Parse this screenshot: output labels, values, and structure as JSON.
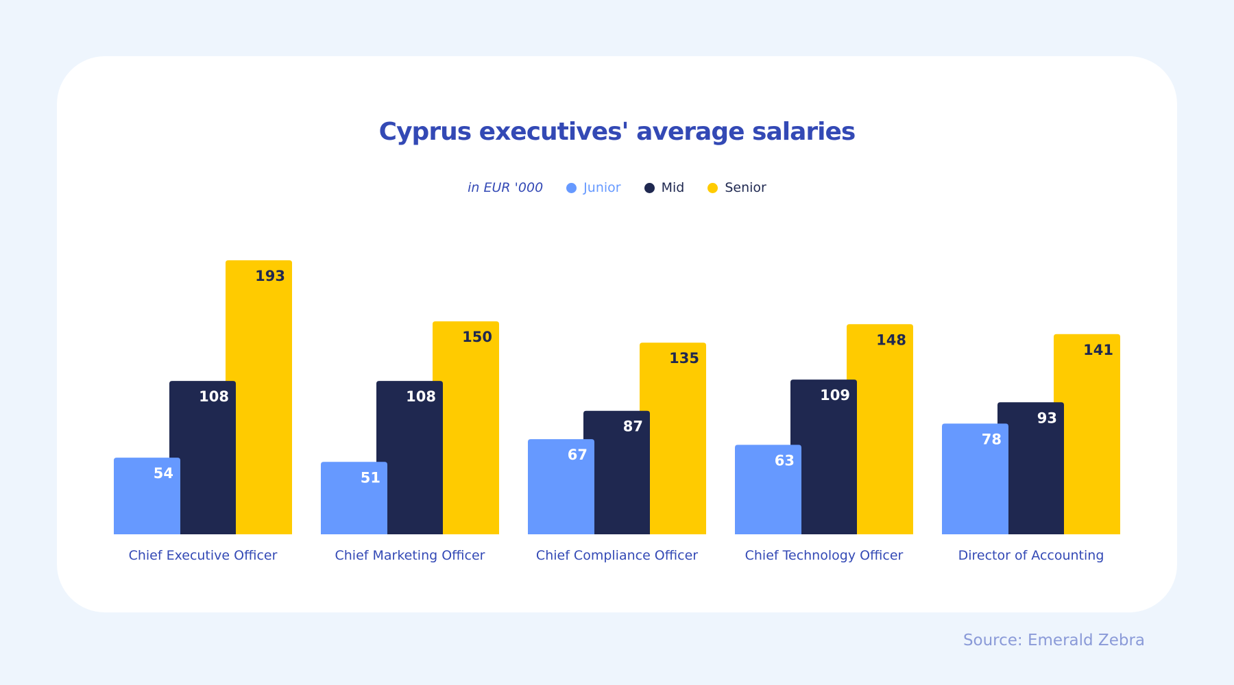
{
  "chart_data": {
    "type": "bar",
    "title": "Cyprus executives' average salaries",
    "unit_label": "in EUR '000",
    "categories": [
      "Chief Executive Officer",
      "Chief Marketing Officer",
      "Chief Compliance Officer",
      "Chief Technology Officer",
      "Director of Accounting"
    ],
    "series": [
      {
        "name": "Junior",
        "color": "#6699ff",
        "label_color": "#ffffff",
        "values": [
          54,
          51,
          67,
          63,
          78
        ]
      },
      {
        "name": "Mid",
        "color": "#1f2850",
        "label_color": "#ffffff",
        "values": [
          108,
          108,
          87,
          109,
          93
        ]
      },
      {
        "name": "Senior",
        "color": "#ffcb00",
        "label_color": "#1f2850",
        "values": [
          193,
          150,
          135,
          148,
          141
        ]
      }
    ],
    "ylim": [
      0,
      193
    ],
    "grid": false,
    "legend": "top-center",
    "source": "Source: Emerald Zebra"
  }
}
